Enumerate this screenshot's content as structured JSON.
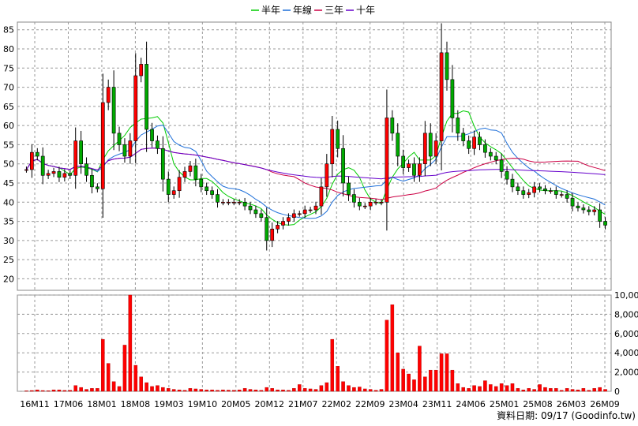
{
  "legend": [
    {
      "label": "半年",
      "color": "#00cc00"
    },
    {
      "label": "年線",
      "color": "#1e6fd9"
    },
    {
      "label": "三年",
      "color": "#cc0044"
    },
    {
      "label": "十年",
      "color": "#6600cc"
    }
  ],
  "footer": "資料日期: 09/17  (Goodinfo.tw)",
  "chart_data": [
    {
      "type": "candlestick",
      "ylim": [
        17,
        87
      ],
      "yticks": [
        20,
        25,
        30,
        35,
        40,
        45,
        50,
        55,
        60,
        65,
        70,
        75,
        80,
        85
      ],
      "xtick_labels": [
        "16M11",
        "17M06",
        "18M01",
        "18M08",
        "19M03",
        "19M10",
        "20M05",
        "20M12",
        "21M07",
        "22M02",
        "22M09",
        "23M04",
        "23M11",
        "24M06",
        "25M01",
        "25M08",
        "26M03",
        "26M09"
      ],
      "up_color": "#ff0000",
      "down_color": "#00aa00",
      "close": [
        48.5,
        53,
        52,
        47,
        47.5,
        48,
        46.5,
        47.5,
        47,
        56,
        50,
        47,
        44,
        43.5,
        66,
        70,
        58,
        55,
        52,
        56,
        73,
        76,
        59,
        56,
        54,
        46,
        42,
        43,
        46.5,
        48,
        49.5,
        46,
        44,
        43,
        42,
        40,
        40,
        40,
        40,
        40,
        39,
        38,
        37,
        36,
        30,
        33,
        34,
        35,
        36,
        37,
        37,
        38,
        38,
        39,
        44,
        50,
        59,
        54,
        45,
        42,
        40,
        39,
        39,
        40,
        40,
        40,
        62,
        58,
        52,
        49,
        50,
        47,
        50,
        58,
        52,
        56,
        79,
        72,
        62,
        58,
        56,
        54,
        57,
        55,
        53,
        52,
        51,
        48,
        46,
        44,
        43,
        42,
        42.5,
        44,
        43.5,
        43,
        43,
        42,
        42,
        41,
        39,
        38.5,
        38,
        37.5,
        38,
        35,
        34
      ]
    },
    {
      "type": "bar",
      "ylim": [
        0,
        10000
      ],
      "yticks": [
        "0",
        "2,000",
        "4,000",
        "6,000",
        "8,000",
        "10,000"
      ],
      "values": [
        50,
        80,
        150,
        80,
        60,
        150,
        150,
        90,
        100,
        600,
        400,
        200,
        300,
        300,
        5400,
        2900,
        1000,
        500,
        4800,
        10300,
        2700,
        1500,
        900,
        500,
        600,
        400,
        300,
        200,
        150,
        100,
        300,
        250,
        200,
        150,
        150,
        100,
        150,
        120,
        100,
        150,
        300,
        200,
        150,
        100,
        400,
        300,
        150,
        150,
        100,
        300,
        700,
        300,
        250,
        200,
        600,
        900,
        5400,
        2600,
        1000,
        600,
        400,
        450,
        250,
        200,
        100,
        200,
        7400,
        9000,
        4000,
        2300,
        1800,
        1200,
        4700,
        1500,
        2200,
        2200,
        3900,
        3900,
        2200,
        800,
        400,
        300,
        600,
        500,
        1100,
        700,
        500,
        800,
        600,
        800,
        300,
        150,
        300,
        200,
        700,
        400,
        300,
        300,
        100,
        300,
        200,
        150,
        300,
        100,
        300,
        400,
        200
      ]
    }
  ]
}
